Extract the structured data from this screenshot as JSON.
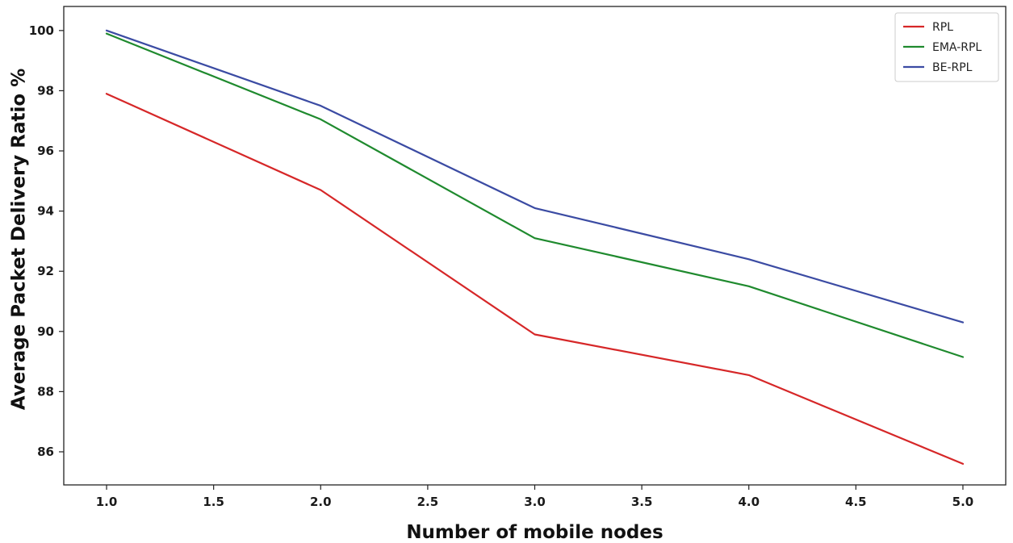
{
  "chart_data": {
    "type": "line",
    "title": "",
    "xlabel": "Number of mobile nodes",
    "ylabel": "Average Packet Delivery Ratio %",
    "x": [
      1.0,
      2.0,
      3.0,
      4.0,
      5.0
    ],
    "xlim": [
      0.8,
      5.2
    ],
    "ylim": [
      84.9,
      100.8
    ],
    "xticks": [
      1.0,
      1.5,
      2.0,
      2.5,
      3.0,
      3.5,
      4.0,
      4.5,
      5.0
    ],
    "xtick_labels": [
      "1.0",
      "1.5",
      "2.0",
      "2.5",
      "3.0",
      "3.5",
      "4.0",
      "4.5",
      "5.0"
    ],
    "yticks": [
      86,
      88,
      90,
      92,
      94,
      96,
      98,
      100
    ],
    "ytick_labels": [
      "86",
      "88",
      "90",
      "92",
      "94",
      "96",
      "98",
      "100"
    ],
    "grid": false,
    "legend_position": "top-right",
    "series": [
      {
        "name": "RPL",
        "color": "#d62728",
        "values": [
          97.9,
          94.7,
          89.9,
          88.55,
          85.6
        ]
      },
      {
        "name": "EMA-RPL",
        "color": "#1f8a2e",
        "values": [
          99.9,
          97.05,
          93.1,
          91.5,
          89.15
        ]
      },
      {
        "name": "BE-RPL",
        "color": "#3b4ba3",
        "values": [
          100.0,
          97.5,
          94.1,
          92.4,
          90.3
        ]
      }
    ]
  }
}
